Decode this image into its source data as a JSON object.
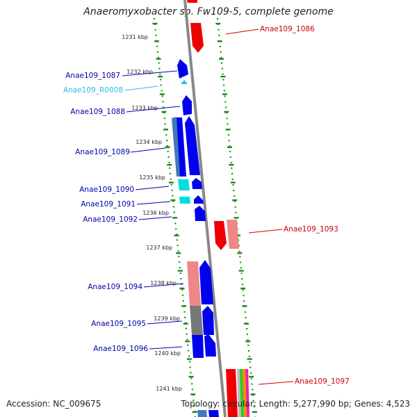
{
  "title": "Anaeromyxobacter sp. Fw109-5, complete genome",
  "footer": {
    "accession": "Accession: NC_009675",
    "summary": "Topology: circular; Length: 5,277,990 bp; Genes: 4,523"
  },
  "colors": {
    "forward_gene": "#0000ee",
    "forward_label": "#0000aa",
    "rna": "#00dddd",
    "rna_label": "#33bbdd",
    "reverse_gene": "#ee0000",
    "reverse_label": "#cc0000",
    "pseudo_pink": "#ee8888",
    "steelblue": "#4477bb",
    "gray_segment": "#777777",
    "backbone": "#888888",
    "ruler": "#1a8a1a"
  },
  "ruler_ticks": [
    "1231 kbp",
    "1232 kbp",
    "1233 kbp",
    "1234 kbp",
    "1235 kbp",
    "1236 kbp",
    "1237 kbp",
    "1238 kbp",
    "1239 kbp",
    "1240 kbp",
    "1241 kbp"
  ],
  "left_labels": [
    "Anae109_1087",
    "Anae109_R0008",
    "Anae109_1088",
    "Anae109_1089",
    "Anae109_1090",
    "Anae109_1091",
    "Anae109_1092",
    "Anae109_1094",
    "Anae109_1095",
    "Anae109_1096"
  ],
  "right_labels": [
    "Anae109_1086",
    "Anae109_1093",
    "Anae109_1097"
  ]
}
